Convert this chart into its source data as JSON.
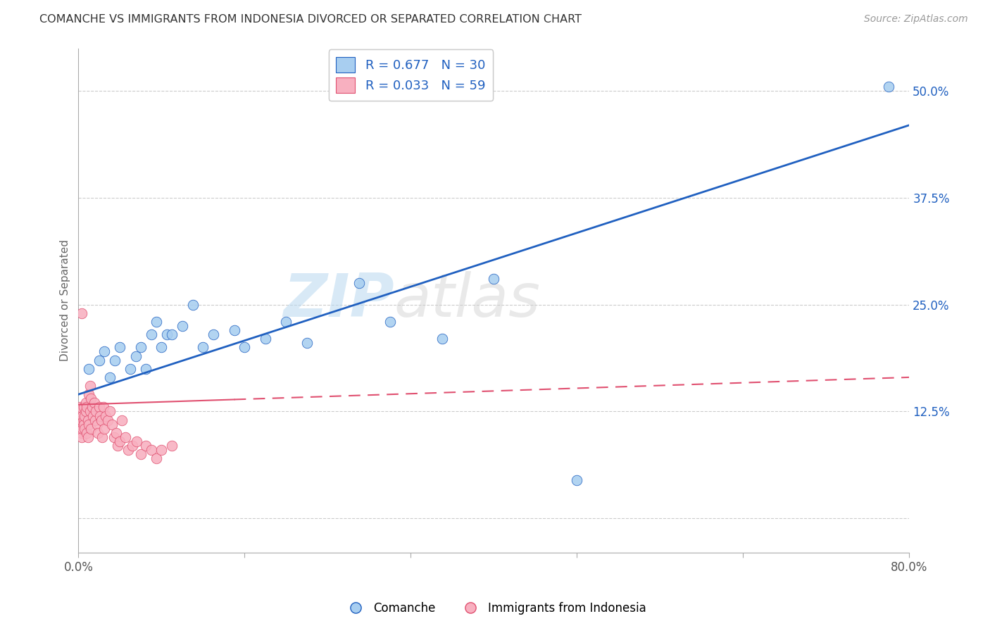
{
  "title": "COMANCHE VS IMMIGRANTS FROM INDONESIA DIVORCED OR SEPARATED CORRELATION CHART",
  "source": "Source: ZipAtlas.com",
  "ylabel": "Divorced or Separated",
  "legend_label1": "Comanche",
  "legend_label2": "Immigrants from Indonesia",
  "r1": "0.677",
  "n1": "30",
  "r2": "0.033",
  "n2": "59",
  "color_blue": "#A8CEF0",
  "color_pink": "#F8B0C0",
  "color_line_blue": "#2060C0",
  "color_line_pink": "#E05070",
  "watermark_zip": "ZIP",
  "watermark_atlas": "atlas",
  "xlim": [
    0.0,
    0.8
  ],
  "ylim": [
    -0.04,
    0.55
  ],
  "yticks": [
    0.0,
    0.125,
    0.25,
    0.375,
    0.5
  ],
  "ytick_labels": [
    "",
    "12.5%",
    "25.0%",
    "37.5%",
    "50.0%"
  ],
  "xticks": [
    0.0,
    0.16,
    0.32,
    0.48,
    0.64,
    0.8
  ],
  "xtick_labels": [
    "0.0%",
    "",
    "",
    "",
    "",
    "80.0%"
  ],
  "blue_line_x0": 0.0,
  "blue_line_y0": 0.145,
  "blue_line_x1": 0.8,
  "blue_line_y1": 0.46,
  "pink_line_x0": 0.0,
  "pink_line_y0": 0.133,
  "pink_line_x1": 0.8,
  "pink_line_y1": 0.165,
  "comanche_x": [
    0.01,
    0.02,
    0.025,
    0.03,
    0.035,
    0.04,
    0.05,
    0.055,
    0.06,
    0.065,
    0.07,
    0.075,
    0.08,
    0.085,
    0.09,
    0.1,
    0.11,
    0.12,
    0.13,
    0.15,
    0.16,
    0.18,
    0.2,
    0.22,
    0.27,
    0.3,
    0.35,
    0.4,
    0.48,
    0.78
  ],
  "comanche_y": [
    0.175,
    0.185,
    0.195,
    0.165,
    0.185,
    0.2,
    0.175,
    0.19,
    0.2,
    0.175,
    0.215,
    0.23,
    0.2,
    0.215,
    0.215,
    0.225,
    0.25,
    0.2,
    0.215,
    0.22,
    0.2,
    0.21,
    0.23,
    0.205,
    0.275,
    0.23,
    0.21,
    0.28,
    0.045,
    0.505
  ],
  "indonesia_x": [
    0.001,
    0.001,
    0.002,
    0.002,
    0.003,
    0.003,
    0.003,
    0.004,
    0.004,
    0.005,
    0.005,
    0.005,
    0.006,
    0.006,
    0.007,
    0.007,
    0.008,
    0.008,
    0.009,
    0.009,
    0.01,
    0.01,
    0.011,
    0.011,
    0.012,
    0.012,
    0.013,
    0.014,
    0.015,
    0.016,
    0.017,
    0.018,
    0.019,
    0.02,
    0.021,
    0.022,
    0.023,
    0.024,
    0.025,
    0.026,
    0.028,
    0.03,
    0.032,
    0.034,
    0.036,
    0.038,
    0.04,
    0.042,
    0.045,
    0.048,
    0.052,
    0.056,
    0.06,
    0.065,
    0.07,
    0.075,
    0.08,
    0.09,
    0.003
  ],
  "indonesia_y": [
    0.125,
    0.11,
    0.13,
    0.105,
    0.115,
    0.1,
    0.095,
    0.12,
    0.105,
    0.115,
    0.11,
    0.13,
    0.12,
    0.105,
    0.125,
    0.135,
    0.13,
    0.1,
    0.115,
    0.095,
    0.145,
    0.11,
    0.155,
    0.125,
    0.14,
    0.105,
    0.13,
    0.12,
    0.135,
    0.115,
    0.125,
    0.11,
    0.1,
    0.13,
    0.12,
    0.115,
    0.095,
    0.13,
    0.105,
    0.12,
    0.115,
    0.125,
    0.11,
    0.095,
    0.1,
    0.085,
    0.09,
    0.115,
    0.095,
    0.08,
    0.085,
    0.09,
    0.075,
    0.085,
    0.08,
    0.07,
    0.08,
    0.085,
    0.24
  ]
}
